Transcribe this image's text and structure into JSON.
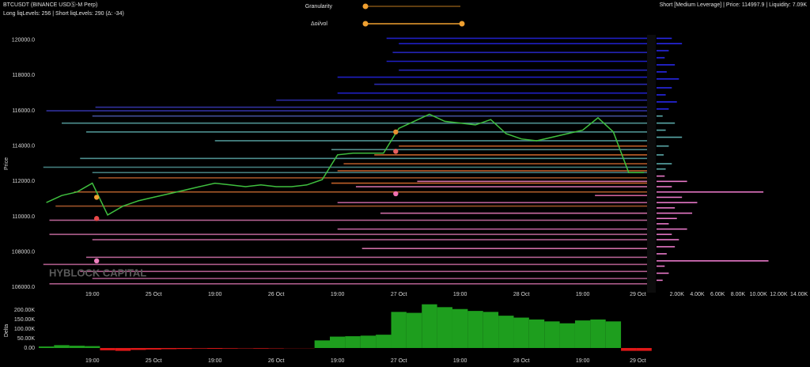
{
  "header": {
    "symbol": "BTCUSDT (BINANCE USDⓈ-M Perp)",
    "levels_summary": "Long liqLevels: 256 | Short liqLevels: 290 (Δ: -34)",
    "status": "Short [Medium Leverage] | Price: 114997.9 | Liquidity: 7.09K"
  },
  "controls": {
    "granularity": "Granularity",
    "delta_oi_vol": "Δoi/vol"
  },
  "watermark": "HYBLOCK CAPITAL",
  "chart_data": [
    {
      "type": "line",
      "y_label": "Price",
      "x": [
        0.25,
        0.5,
        0.75,
        1.0,
        1.25,
        1.5,
        1.75,
        2.0,
        2.25,
        2.5,
        2.75,
        3.0,
        3.25,
        3.5,
        3.75,
        4.0,
        4.25,
        4.5,
        4.75,
        5.0,
        5.25,
        5.5,
        5.75,
        6.0,
        6.25,
        6.5,
        6.75,
        7.0,
        7.25,
        7.5,
        7.75,
        8.0,
        8.25,
        8.5,
        8.75,
        9.0,
        9.25,
        9.5,
        9.75,
        10.0
      ],
      "series": [
        {
          "color": "#3fc03f",
          "values": [
            110800,
            111200,
            111400,
            111900,
            110100,
            110600,
            110900,
            111100,
            111300,
            111500,
            111700,
            111900,
            111800,
            111700,
            111800,
            111700,
            111700,
            111800,
            112100,
            113500,
            113600,
            113600,
            113600,
            115000,
            115400,
            115800,
            115400,
            115300,
            115200,
            115500,
            114700,
            114400,
            114300,
            114500,
            114700,
            114900,
            115600,
            114800,
            112500,
            112500
          ]
        }
      ],
      "levels": {
        "prices": [
          120100,
          119800,
          119300,
          118800,
          118300,
          117900,
          117500,
          117000,
          116600,
          116200,
          116000,
          115700,
          115300,
          114800,
          114300,
          113800,
          113300,
          112800,
          112500,
          114000,
          113500,
          113000,
          112600,
          112200,
          111900,
          111400,
          110600,
          112000,
          111700,
          111200,
          110800,
          110200,
          109800,
          109300,
          109000,
          108700,
          108200,
          107700,
          107300,
          106900,
          106500,
          106200
        ],
        "starts": [
          5.8,
          6.0,
          5.9,
          5.8,
          6.0,
          5.0,
          5.6,
          5.0,
          4.0,
          1.05,
          0.25,
          1.0,
          0.5,
          0.9,
          3.0,
          4.9,
          0.8,
          0.2,
          1.0,
          6.0,
          5.6,
          5.1,
          5.0,
          1.1,
          4.9,
          0.7,
          0.4,
          6.3,
          5.3,
          9.2,
          5.0,
          5.7,
          0.3,
          5.0,
          0.3,
          1.0,
          5.4,
          0.9,
          0.2,
          0.8,
          1.0,
          0.3
        ],
        "colors": [
          "#2424e6",
          "#2424e6",
          "#2a2ad8",
          "#2424e6",
          "#2a2ad8",
          "#2424e6",
          "#3030d0",
          "#2424e6",
          "#3434c8",
          "#3a3ab8",
          "#3a3ab8",
          "#4a5ab0",
          "#5aa8a8",
          "#5aa8a8",
          "#5aa8a8",
          "#6ab0b0",
          "#5aa8a8",
          "#4e9090",
          "#4e9090",
          "#e07030",
          "#e07030",
          "#d86a30",
          "#d86a30",
          "#c86a30",
          "#e07030",
          "#c86a30",
          "#b86030",
          "#f080c0",
          "#f080c0",
          "#f070b0",
          "#e878c0",
          "#f080c0",
          "#d070a8",
          "#e878c0",
          "#d070a8",
          "#d070a8",
          "#f080c0",
          "#d070a8",
          "#c86aa0",
          "#c86aa0",
          "#c86aa0",
          "#c86aa0"
        ]
      },
      "markers": {
        "x": [
          1.07,
          1.07,
          1.07,
          5.95,
          5.95,
          5.95
        ],
        "y": [
          111100,
          109900,
          107500,
          114800,
          113700,
          111300
        ],
        "colors": [
          "#f0a030",
          "#e84848",
          "#f080c0",
          "#e89030",
          "#e86060",
          "#f070b0"
        ]
      },
      "xlim": [
        0.1,
        10.05
      ],
      "xticks": [
        {
          "value": 1,
          "label": "19:00"
        },
        {
          "value": 2,
          "label": "25 Oct"
        },
        {
          "value": 3,
          "label": "19:00"
        },
        {
          "value": 4,
          "label": "26 Oct"
        },
        {
          "value": 5,
          "label": "19:00"
        },
        {
          "value": 6,
          "label": "27 Oct"
        },
        {
          "value": 7,
          "label": "19:00"
        },
        {
          "value": 8,
          "label": "28 Oct"
        },
        {
          "value": 9,
          "label": "19:00"
        },
        {
          "value": 9.9,
          "label": "29 Oct"
        }
      ],
      "ylim": [
        105700,
        120300
      ],
      "yticks": [
        {
          "value": 106000,
          "label": "106000.0"
        },
        {
          "value": 108000,
          "label": "108000.0"
        },
        {
          "value": 110000,
          "label": "110000.0"
        },
        {
          "value": 112000,
          "label": "112000.0"
        },
        {
          "value": 114000,
          "label": "114000.0"
        },
        {
          "value": 116000,
          "label": "116000.0"
        },
        {
          "value": 118000,
          "label": "118000.0"
        },
        {
          "value": 120000,
          "label": "120000.0"
        }
      ]
    },
    {
      "type": "hbar",
      "y": [
        120100,
        119800,
        119400,
        119000,
        118600,
        118200,
        117800,
        117300,
        116900,
        116500,
        116100,
        115700,
        115300,
        114900,
        114500,
        114000,
        113500,
        113000,
        112700,
        112300,
        112000,
        111700,
        111400,
        111100,
        110800,
        110500,
        110200,
        109900,
        109600,
        109300,
        109000,
        108700,
        108300,
        107900,
        107500,
        107200,
        106800,
        106400
      ],
      "values": [
        1500,
        2500,
        1200,
        800,
        1800,
        1000,
        2200,
        1500,
        900,
        2000,
        1200,
        600,
        1800,
        900,
        2500,
        1200,
        700,
        1500,
        900,
        800,
        3000,
        1500,
        10500,
        2500,
        4000,
        1800,
        3500,
        2000,
        1200,
        3000,
        1500,
        2200,
        1800,
        1000,
        11000,
        800,
        1200,
        600
      ],
      "colors": [
        "#2828e8",
        "#2828e8",
        "#2828e8",
        "#2828e8",
        "#2828e8",
        "#2828e8",
        "#2828e8",
        "#2828e8",
        "#2828e8",
        "#2828e8",
        "#2828e8",
        "#5aa8a8",
        "#5aa8a8",
        "#5aa8a8",
        "#5aa8a8",
        "#5aa8a8",
        "#5aa8a8",
        "#5aa8a8",
        "#5aa8a8",
        "#e878c8",
        "#e878c8",
        "#e878c8",
        "#e878c8",
        "#e878c8",
        "#e878c8",
        "#e878c8",
        "#e878c8",
        "#e878c8",
        "#e878c8",
        "#e878c8",
        "#e878c8",
        "#e878c8",
        "#e878c8",
        "#e878c8",
        "#e878c8",
        "#e878c8",
        "#e878c8",
        "#e878c8"
      ],
      "xlim": [
        0,
        15000
      ],
      "xticks": [
        {
          "value": 2000,
          "label": "2.00K"
        },
        {
          "value": 4000,
          "label": "4.00K"
        },
        {
          "value": 6000,
          "label": "6.00K"
        },
        {
          "value": 8000,
          "label": "8.00K"
        },
        {
          "value": 10000,
          "label": "10.00K"
        },
        {
          "value": 12000,
          "label": "12.00K"
        },
        {
          "value": 14000,
          "label": "14.00K"
        }
      ],
      "ylim": [
        105700,
        120300
      ]
    },
    {
      "type": "bar",
      "y_label": "Delta",
      "x": [
        0.25,
        0.5,
        0.75,
        1.0,
        1.25,
        1.5,
        1.75,
        2.0,
        2.25,
        2.5,
        2.75,
        3.0,
        3.25,
        3.5,
        3.75,
        4.0,
        4.25,
        4.5,
        4.75,
        5.0,
        5.25,
        5.5,
        5.75,
        6.0,
        6.25,
        6.5,
        6.75,
        7.0,
        7.25,
        7.5,
        7.75,
        8.0,
        8.25,
        8.5,
        8.75,
        9.0,
        9.25,
        9.5,
        9.75,
        10.0
      ],
      "values": [
        8000,
        15000,
        12000,
        10000,
        -12000,
        -15000,
        -10000,
        -8000,
        -6000,
        -5000,
        -3000,
        -4000,
        -3000,
        -2000,
        -3000,
        -2000,
        -1000,
        -1000,
        40000,
        60000,
        62000,
        65000,
        70000,
        190000,
        185000,
        230000,
        215000,
        205000,
        195000,
        190000,
        170000,
        160000,
        150000,
        140000,
        130000,
        145000,
        150000,
        140000,
        -15000,
        -15000
      ],
      "up_color": "#1e9e1e",
      "down_color": "#e01818",
      "xlim": [
        0.1,
        10.05
      ],
      "xticks": [
        {
          "value": 1,
          "label": "19:00"
        },
        {
          "value": 2,
          "label": "25 Oct"
        },
        {
          "value": 3,
          "label": "19:00"
        },
        {
          "value": 4,
          "label": "26 Oct"
        },
        {
          "value": 5,
          "label": "19:00"
        },
        {
          "value": 6,
          "label": "27 Oct"
        },
        {
          "value": 7,
          "label": "19:00"
        },
        {
          "value": 8,
          "label": "28 Oct"
        },
        {
          "value": 9,
          "label": "19:00"
        },
        {
          "value": 9.9,
          "label": "29 Oct"
        }
      ],
      "ylim": [
        -50000,
        233000
      ],
      "yticks": [
        {
          "value": 0,
          "label": "0.00"
        },
        {
          "value": 50000,
          "label": "50.00K"
        },
        {
          "value": 100000,
          "label": "100.00K"
        },
        {
          "value": 150000,
          "label": "150.00K"
        },
        {
          "value": 200000,
          "label": "200.00K"
        }
      ]
    }
  ]
}
